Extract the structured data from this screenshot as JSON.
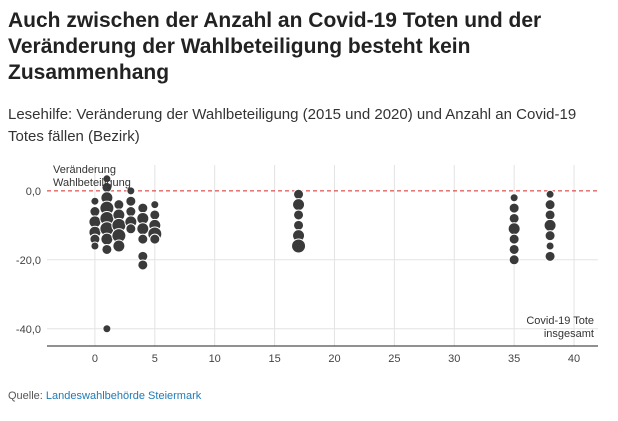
{
  "title": "Auch zwischen der Anzahl an Covid-19 Toten und der Veränderung der Wahlbeteiligung besteht kein Zusammenhang",
  "subtitle": "Lesehilfe: Veränderung der Wahlbeteiligung (2015 und 2020) und Anzahl an Covid-19 Totes fällen (Bezirk)",
  "source": {
    "label": "Quelle:",
    "link_text": "Landeswahlbehörde Steiermark"
  },
  "chart_data": {
    "type": "scatter",
    "title": "",
    "ylabel_lines": [
      "Veränderung",
      "Wahlbeteiligung"
    ],
    "xlabel_lines": [
      "Covid-19 Tote",
      "insgesamt"
    ],
    "xlim": [
      -4,
      42
    ],
    "ylim": [
      -45,
      7.5
    ],
    "x_ticks": [
      0,
      5,
      10,
      15,
      20,
      25,
      30,
      35,
      40
    ],
    "x_tick_labels": [
      "0",
      "5",
      "10",
      "15",
      "20",
      "25",
      "30",
      "35",
      "40"
    ],
    "y_ticks": [
      0,
      -20,
      -40
    ],
    "y_tick_labels": [
      "0,0",
      "-20,0",
      "-40,0"
    ],
    "grid": true,
    "reference_line": {
      "y": 0,
      "style": "dashed",
      "color": "#d62728"
    },
    "point_color": "#3a3a3a",
    "points": [
      {
        "x": 0,
        "y": -3,
        "r": 4
      },
      {
        "x": 0,
        "y": -6,
        "r": 5
      },
      {
        "x": 0,
        "y": -9,
        "r": 6
      },
      {
        "x": 0,
        "y": -12,
        "r": 6
      },
      {
        "x": 0,
        "y": -14,
        "r": 5
      },
      {
        "x": 0,
        "y": -16,
        "r": 4
      },
      {
        "x": 1,
        "y": 3.5,
        "r": 4
      },
      {
        "x": 1,
        "y": 1,
        "r": 5
      },
      {
        "x": 1,
        "y": -2,
        "r": 6
      },
      {
        "x": 1,
        "y": -5,
        "r": 7
      },
      {
        "x": 1,
        "y": -8,
        "r": 7
      },
      {
        "x": 1,
        "y": -11,
        "r": 7
      },
      {
        "x": 1,
        "y": -14,
        "r": 6
      },
      {
        "x": 1,
        "y": -17,
        "r": 5
      },
      {
        "x": 1,
        "y": -40,
        "r": 4
      },
      {
        "x": 2,
        "y": -4,
        "r": 5
      },
      {
        "x": 2,
        "y": -7,
        "r": 6
      },
      {
        "x": 2,
        "y": -10,
        "r": 7
      },
      {
        "x": 2,
        "y": -13,
        "r": 7
      },
      {
        "x": 2,
        "y": -16,
        "r": 6
      },
      {
        "x": 3,
        "y": 0,
        "r": 4
      },
      {
        "x": 3,
        "y": -3,
        "r": 5
      },
      {
        "x": 3,
        "y": -6,
        "r": 5
      },
      {
        "x": 3,
        "y": -9,
        "r": 6
      },
      {
        "x": 3,
        "y": -11,
        "r": 5
      },
      {
        "x": 4,
        "y": -5,
        "r": 5
      },
      {
        "x": 4,
        "y": -8,
        "r": 6
      },
      {
        "x": 4,
        "y": -11,
        "r": 6
      },
      {
        "x": 4,
        "y": -14,
        "r": 5
      },
      {
        "x": 4,
        "y": -19,
        "r": 5
      },
      {
        "x": 4,
        "y": -21.5,
        "r": 5
      },
      {
        "x": 5,
        "y": -4,
        "r": 4
      },
      {
        "x": 5,
        "y": -7,
        "r": 5
      },
      {
        "x": 5,
        "y": -10,
        "r": 6
      },
      {
        "x": 5,
        "y": -12.5,
        "r": 7
      },
      {
        "x": 5,
        "y": -14,
        "r": 5
      },
      {
        "x": 17,
        "y": -1,
        "r": 5
      },
      {
        "x": 17,
        "y": -4,
        "r": 6
      },
      {
        "x": 17,
        "y": -7,
        "r": 5
      },
      {
        "x": 17,
        "y": -10,
        "r": 5
      },
      {
        "x": 17,
        "y": -13,
        "r": 6
      },
      {
        "x": 17,
        "y": -16,
        "r": 7
      },
      {
        "x": 35,
        "y": -2,
        "r": 4
      },
      {
        "x": 35,
        "y": -5,
        "r": 5
      },
      {
        "x": 35,
        "y": -8,
        "r": 5
      },
      {
        "x": 35,
        "y": -11,
        "r": 6
      },
      {
        "x": 35,
        "y": -14,
        "r": 5
      },
      {
        "x": 35,
        "y": -17,
        "r": 5
      },
      {
        "x": 35,
        "y": -20,
        "r": 5
      },
      {
        "x": 38,
        "y": -1,
        "r": 4
      },
      {
        "x": 38,
        "y": -4,
        "r": 5
      },
      {
        "x": 38,
        "y": -7,
        "r": 5
      },
      {
        "x": 38,
        "y": -10,
        "r": 6
      },
      {
        "x": 38,
        "y": -13,
        "r": 5
      },
      {
        "x": 38,
        "y": -16,
        "r": 4
      },
      {
        "x": 38,
        "y": -19,
        "r": 5
      }
    ]
  }
}
